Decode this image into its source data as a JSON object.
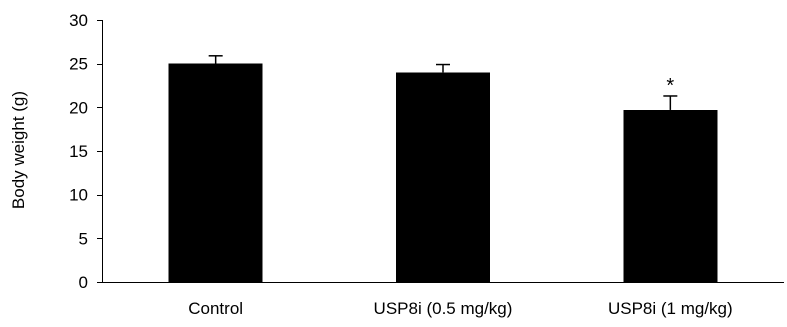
{
  "chart_data": {
    "type": "bar",
    "categories": [
      "Control",
      "USP8i (0.5 mg/kg)",
      "USP8i (1 mg/kg)"
    ],
    "values": [
      25,
      24,
      19.7
    ],
    "error_plus": [
      0.9,
      0.9,
      1.6
    ],
    "annotations": [
      "",
      "",
      "*"
    ],
    "xlabel": "",
    "ylabel": "Body weight (g)",
    "ylim": [
      0,
      30
    ],
    "yticks": [
      0,
      5,
      10,
      15,
      20,
      25,
      30
    ],
    "grid": false,
    "legend": "none",
    "bar_color": "#000000"
  }
}
